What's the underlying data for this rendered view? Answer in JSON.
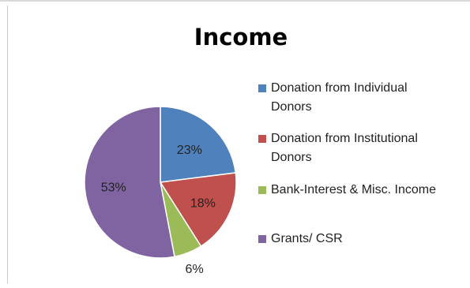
{
  "chart_data": {
    "type": "pie",
    "title": "Income",
    "categories": [
      "Donation from Individual Donors",
      "Donation from Institutional Donors",
      "Bank-Interest & Misc. Income",
      "Grants/ CSR"
    ],
    "values": [
      23,
      18,
      6,
      53
    ],
    "value_labels": [
      "23%",
      "18%",
      "6%",
      "53%"
    ],
    "colors": [
      "#4f81bd",
      "#c0504d",
      "#9bbb59",
      "#8064a2"
    ],
    "legend_position": "right",
    "legend_entries": [
      "Donation from Individual\nDonors",
      "Donation from Institutional\nDonors",
      "Bank-Interest & Misc. Income",
      "Grants/ CSR"
    ]
  }
}
